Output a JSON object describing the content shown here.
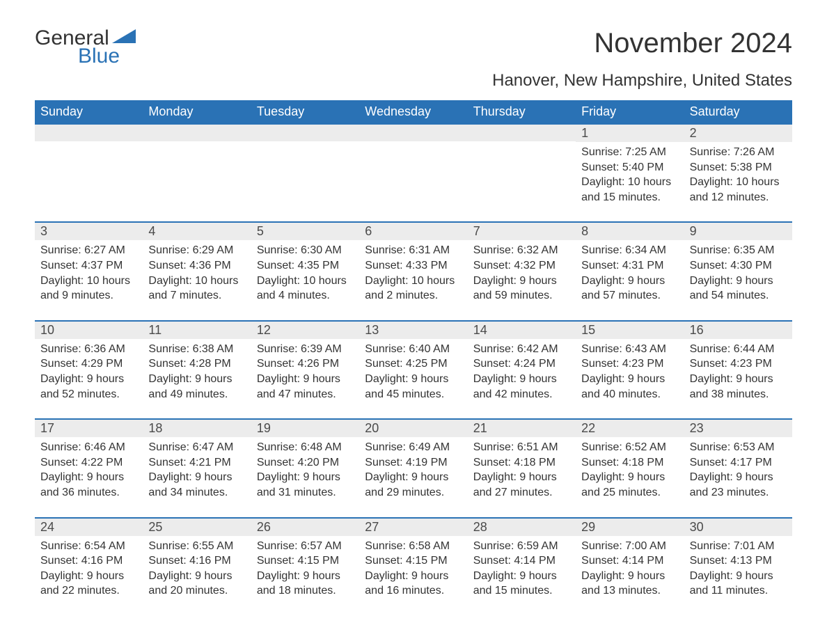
{
  "logo": {
    "word1": "General",
    "word2": "Blue",
    "flag_color": "#2a72b5"
  },
  "title": "November 2024",
  "subtitle": "Hanover, New Hampshire, United States",
  "colors": {
    "header_bar": "#2a72b5",
    "week_divider": "#2a72b5",
    "day_num_bg": "#ececec",
    "text": "#333333",
    "background": "#ffffff"
  },
  "typography": {
    "title_fontsize": 40,
    "subtitle_fontsize": 24,
    "dow_fontsize": 18,
    "daynum_fontsize": 18,
    "body_fontsize": 16
  },
  "labels": {
    "sunrise_prefix": "Sunrise: ",
    "sunset_prefix": "Sunset: ",
    "daylight_prefix": "Daylight: "
  },
  "days_of_week": [
    "Sunday",
    "Monday",
    "Tuesday",
    "Wednesday",
    "Thursday",
    "Friday",
    "Saturday"
  ],
  "weeks": [
    [
      {
        "empty": true
      },
      {
        "empty": true
      },
      {
        "empty": true
      },
      {
        "empty": true
      },
      {
        "empty": true
      },
      {
        "num": "1",
        "sunrise": "7:25 AM",
        "sunset": "5:40 PM",
        "daylight": "10 hours and 15 minutes."
      },
      {
        "num": "2",
        "sunrise": "7:26 AM",
        "sunset": "5:38 PM",
        "daylight": "10 hours and 12 minutes."
      }
    ],
    [
      {
        "num": "3",
        "sunrise": "6:27 AM",
        "sunset": "4:37 PM",
        "daylight": "10 hours and 9 minutes."
      },
      {
        "num": "4",
        "sunrise": "6:29 AM",
        "sunset": "4:36 PM",
        "daylight": "10 hours and 7 minutes."
      },
      {
        "num": "5",
        "sunrise": "6:30 AM",
        "sunset": "4:35 PM",
        "daylight": "10 hours and 4 minutes."
      },
      {
        "num": "6",
        "sunrise": "6:31 AM",
        "sunset": "4:33 PM",
        "daylight": "10 hours and 2 minutes."
      },
      {
        "num": "7",
        "sunrise": "6:32 AM",
        "sunset": "4:32 PM",
        "daylight": "9 hours and 59 minutes."
      },
      {
        "num": "8",
        "sunrise": "6:34 AM",
        "sunset": "4:31 PM",
        "daylight": "9 hours and 57 minutes."
      },
      {
        "num": "9",
        "sunrise": "6:35 AM",
        "sunset": "4:30 PM",
        "daylight": "9 hours and 54 minutes."
      }
    ],
    [
      {
        "num": "10",
        "sunrise": "6:36 AM",
        "sunset": "4:29 PM",
        "daylight": "9 hours and 52 minutes."
      },
      {
        "num": "11",
        "sunrise": "6:38 AM",
        "sunset": "4:28 PM",
        "daylight": "9 hours and 49 minutes."
      },
      {
        "num": "12",
        "sunrise": "6:39 AM",
        "sunset": "4:26 PM",
        "daylight": "9 hours and 47 minutes."
      },
      {
        "num": "13",
        "sunrise": "6:40 AM",
        "sunset": "4:25 PM",
        "daylight": "9 hours and 45 minutes."
      },
      {
        "num": "14",
        "sunrise": "6:42 AM",
        "sunset": "4:24 PM",
        "daylight": "9 hours and 42 minutes."
      },
      {
        "num": "15",
        "sunrise": "6:43 AM",
        "sunset": "4:23 PM",
        "daylight": "9 hours and 40 minutes."
      },
      {
        "num": "16",
        "sunrise": "6:44 AM",
        "sunset": "4:23 PM",
        "daylight": "9 hours and 38 minutes."
      }
    ],
    [
      {
        "num": "17",
        "sunrise": "6:46 AM",
        "sunset": "4:22 PM",
        "daylight": "9 hours and 36 minutes."
      },
      {
        "num": "18",
        "sunrise": "6:47 AM",
        "sunset": "4:21 PM",
        "daylight": "9 hours and 34 minutes."
      },
      {
        "num": "19",
        "sunrise": "6:48 AM",
        "sunset": "4:20 PM",
        "daylight": "9 hours and 31 minutes."
      },
      {
        "num": "20",
        "sunrise": "6:49 AM",
        "sunset": "4:19 PM",
        "daylight": "9 hours and 29 minutes."
      },
      {
        "num": "21",
        "sunrise": "6:51 AM",
        "sunset": "4:18 PM",
        "daylight": "9 hours and 27 minutes."
      },
      {
        "num": "22",
        "sunrise": "6:52 AM",
        "sunset": "4:18 PM",
        "daylight": "9 hours and 25 minutes."
      },
      {
        "num": "23",
        "sunrise": "6:53 AM",
        "sunset": "4:17 PM",
        "daylight": "9 hours and 23 minutes."
      }
    ],
    [
      {
        "num": "24",
        "sunrise": "6:54 AM",
        "sunset": "4:16 PM",
        "daylight": "9 hours and 22 minutes."
      },
      {
        "num": "25",
        "sunrise": "6:55 AM",
        "sunset": "4:16 PM",
        "daylight": "9 hours and 20 minutes."
      },
      {
        "num": "26",
        "sunrise": "6:57 AM",
        "sunset": "4:15 PM",
        "daylight": "9 hours and 18 minutes."
      },
      {
        "num": "27",
        "sunrise": "6:58 AM",
        "sunset": "4:15 PM",
        "daylight": "9 hours and 16 minutes."
      },
      {
        "num": "28",
        "sunrise": "6:59 AM",
        "sunset": "4:14 PM",
        "daylight": "9 hours and 15 minutes."
      },
      {
        "num": "29",
        "sunrise": "7:00 AM",
        "sunset": "4:14 PM",
        "daylight": "9 hours and 13 minutes."
      },
      {
        "num": "30",
        "sunrise": "7:01 AM",
        "sunset": "4:13 PM",
        "daylight": "9 hours and 11 minutes."
      }
    ]
  ]
}
